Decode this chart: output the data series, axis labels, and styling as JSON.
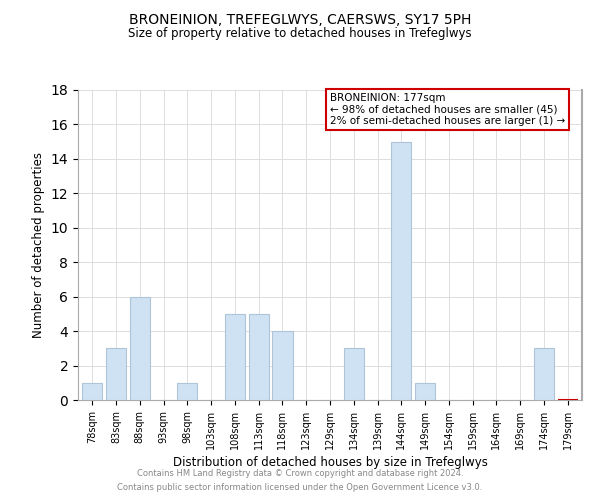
{
  "title": "BRONEINION, TREFEGLWYS, CAERSWS, SY17 5PH",
  "subtitle": "Size of property relative to detached houses in Trefeglwys",
  "xlabel": "Distribution of detached houses by size in Trefeglwys",
  "ylabel": "Number of detached properties",
  "bin_labels": [
    "78sqm",
    "83sqm",
    "88sqm",
    "93sqm",
    "98sqm",
    "103sqm",
    "108sqm",
    "113sqm",
    "118sqm",
    "123sqm",
    "129sqm",
    "134sqm",
    "139sqm",
    "144sqm",
    "149sqm",
    "154sqm",
    "159sqm",
    "164sqm",
    "169sqm",
    "174sqm",
    "179sqm"
  ],
  "bar_values": [
    1,
    3,
    6,
    0,
    1,
    0,
    5,
    5,
    4,
    0,
    0,
    3,
    0,
    15,
    1,
    0,
    0,
    0,
    0,
    3,
    0
  ],
  "bar_color": "#cfe2f3",
  "highlight_bar_index": 20,
  "highlight_bar_color": "#ffcccc",
  "highlight_bar_edge_color": "#cc0000",
  "normal_bar_edge_color": "#b0c4d8",
  "legend_title": "BRONEINION: 177sqm",
  "legend_line1": "← 98% of detached houses are smaller (45)",
  "legend_line2": "2% of semi-detached houses are larger (1) →",
  "legend_box_edge": "#cc0000",
  "ylim": [
    0,
    18
  ],
  "yticks": [
    0,
    2,
    4,
    6,
    8,
    10,
    12,
    14,
    16,
    18
  ],
  "footer1": "Contains HM Land Registry data © Crown copyright and database right 2024.",
  "footer2": "Contains public sector information licensed under the Open Government Licence v3.0.",
  "background_color": "#ffffff",
  "grid_color": "#dddddd"
}
